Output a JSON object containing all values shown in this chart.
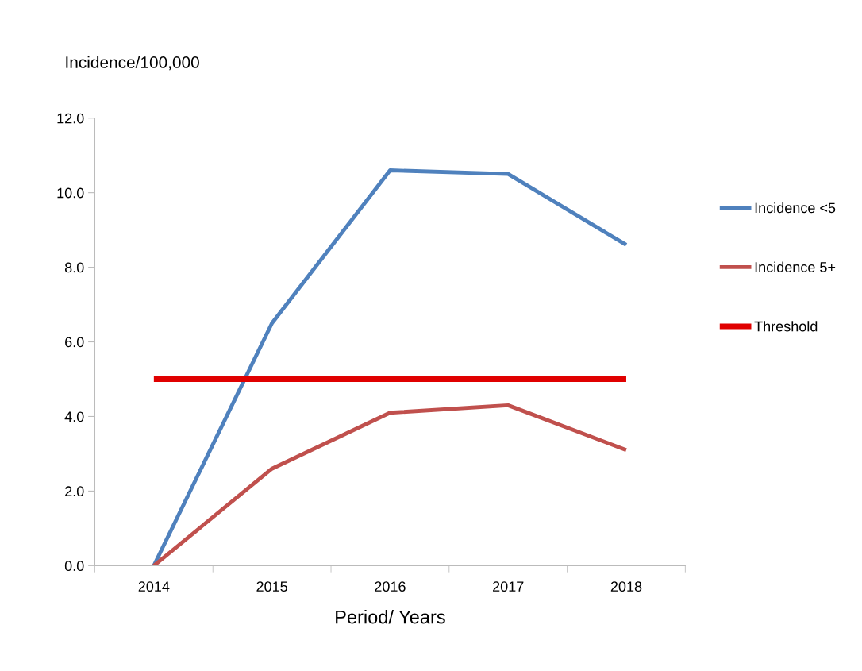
{
  "chart_data": {
    "type": "line",
    "xlabel": "Period/ Years",
    "ylabel": "Incidence/100,000",
    "categories": [
      "2014",
      "2015",
      "2016",
      "2017",
      "2018"
    ],
    "series": [
      {
        "name": "Incidence <5",
        "color": "#4f81bd",
        "values": [
          0.0,
          6.5,
          10.6,
          10.5,
          8.6
        ]
      },
      {
        "name": "Incidence 5+",
        "color": "#c0504d",
        "values": [
          0.0,
          2.6,
          4.1,
          4.3,
          3.1
        ]
      },
      {
        "name": "Threshold",
        "color": "#e00000",
        "values": [
          5.0,
          5.0,
          5.0,
          5.0,
          5.0
        ]
      }
    ],
    "ylim": [
      0,
      12
    ],
    "yticks": [
      {
        "value": 0,
        "label": "0.0"
      },
      {
        "value": 2,
        "label": "2.0"
      },
      {
        "value": 4,
        "label": "4.0"
      },
      {
        "value": 6,
        "label": "6.0"
      },
      {
        "value": 8,
        "label": "8.0"
      },
      {
        "value": 10,
        "label": "10.0"
      },
      {
        "value": 12,
        "label": "12.0"
      }
    ],
    "grid": false,
    "legend": "right",
    "marker": "none",
    "line_style": "solid"
  }
}
